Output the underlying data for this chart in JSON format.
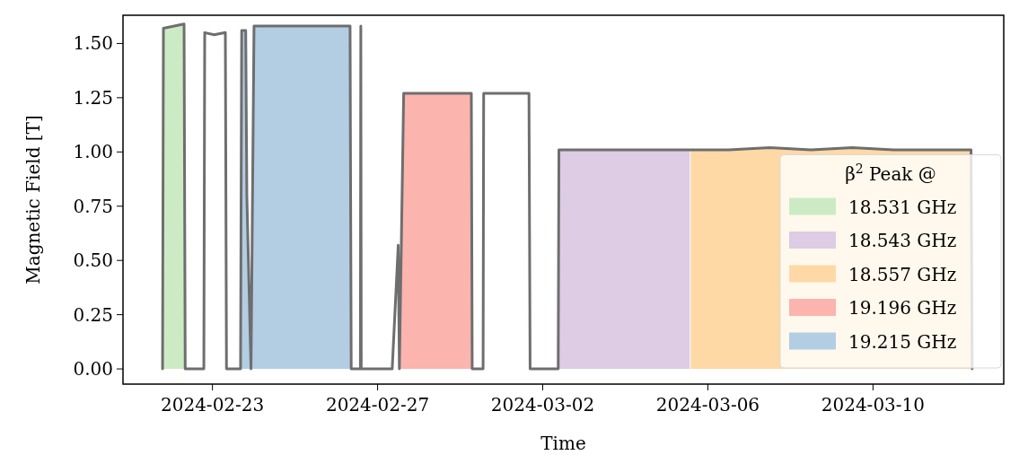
{
  "chart_data": {
    "type": "line",
    "xlabel": "Time",
    "ylabel": "Magnetic Field [T]",
    "legend_title": "β$^{2}$ Peak @",
    "legend": "bottom right",
    "grid": false,
    "xlim": [
      "2024-02-20T20:00",
      "2024-03-13T04:00"
    ],
    "xticks": [
      "2024-02-23",
      "2024-02-27",
      "2024-03-02",
      "2024-03-06",
      "2024-03-10"
    ],
    "ylim": [
      -0.07,
      1.63
    ],
    "yticks": [
      {
        "value": 0,
        "label": "0.00"
      },
      {
        "value": 0.25,
        "label": "0.25"
      },
      {
        "value": 0.5,
        "label": "0.50"
      },
      {
        "value": 0.75,
        "label": "0.75"
      },
      {
        "value": 1,
        "label": "1.00"
      },
      {
        "value": 1.25,
        "label": "1.25"
      },
      {
        "value": 1.5,
        "label": "1.50"
      }
    ],
    "series": [
      {
        "type": "area",
        "name": "18.531 GHz",
        "color": "#ccebc5",
        "x": [
          "2024-02-21T19:00",
          "2024-02-21T19:30",
          "2024-02-22T07:30",
          "2024-02-22T08:10"
        ],
        "values": [
          0,
          1.57,
          1.59,
          0
        ]
      },
      {
        "type": "area",
        "name": "18.543 GHz",
        "color": "#decbe4",
        "x": [
          "2024-03-02T09:00",
          "2024-03-02T09:25",
          "2024-03-05T13:30"
        ],
        "values": [
          0,
          1.01,
          1.01
        ]
      },
      {
        "type": "area",
        "name": "18.557 GHz",
        "color": "#fed9a6",
        "x": [
          "2024-03-05T14:00",
          "2024-03-06T12:00",
          "2024-03-07T12:00",
          "2024-03-08T12:00",
          "2024-03-09T12:00",
          "2024-03-10T12:00",
          "2024-03-11T12:00",
          "2024-03-12T09:00",
          "2024-03-12T09:40"
        ],
        "values": [
          1.01,
          1.01,
          1.02,
          1.01,
          1.02,
          1.01,
          1.01,
          1.01,
          0
        ]
      },
      {
        "type": "area",
        "name": "19.196 GHz",
        "color": "#fbb4ae",
        "x": [
          "2024-02-27T12:40",
          "2024-02-27T15:10",
          "2024-02-29T06:30",
          "2024-02-29T07:00"
        ],
        "values": [
          0,
          1.27,
          1.27,
          0
        ]
      },
      {
        "type": "area",
        "name": "19.215 GHz",
        "color": "#b3cde3",
        "x": [
          "2024-02-23T16:20",
          "2024-02-23T17:00",
          "2024-02-23T19:20",
          "2024-02-23T20:00",
          "2024-02-23T22:25",
          "2024-02-24T00:10",
          "2024-02-25T04:00",
          "2024-02-26T08:00",
          "2024-02-26T08:40"
        ],
        "values": [
          0,
          1.56,
          1.56,
          0.8,
          0,
          1.58,
          1.58,
          1.58,
          0
        ]
      },
      {
        "color": "#6e6e6e",
        "x": [
          "2024-02-21T19:00",
          "2024-02-21T19:30",
          "2024-02-22T07:30",
          "2024-02-22T08:10",
          "2024-02-22T19:00",
          "2024-02-22T19:30",
          "2024-02-23T01:00",
          "2024-02-23T07:30",
          "2024-02-23T08:10",
          "2024-02-23T16:20",
          "2024-02-23T17:00",
          "2024-02-23T19:20",
          "2024-02-23T20:00",
          "2024-02-23T22:25",
          "2024-02-24T00:10",
          "2024-02-25T04:00",
          "2024-02-26T08:00",
          "2024-02-26T08:40",
          "2024-02-26T14:00",
          "2024-02-26T14:15",
          "2024-02-26T14:30",
          "2024-02-27T08:30",
          "2024-02-27T12:00",
          "2024-02-27T12:40",
          "2024-02-27T15:10",
          "2024-02-29T06:30",
          "2024-02-29T07:00",
          "2024-02-29T13:20",
          "2024-02-29T13:40",
          "2024-03-01T16:00",
          "2024-03-01T16:40",
          "2024-03-02T09:00",
          "2024-03-02T09:25",
          "2024-03-05T13:30",
          "2024-03-06T12:00",
          "2024-03-07T12:00",
          "2024-03-08T12:00",
          "2024-03-09T12:00",
          "2024-03-10T12:00",
          "2024-03-11T12:00",
          "2024-03-12T09:00",
          "2024-03-12T09:40"
        ],
        "values": [
          0,
          1.57,
          1.59,
          0,
          0,
          1.55,
          1.54,
          1.55,
          0,
          0,
          1.56,
          1.56,
          0.8,
          0,
          1.58,
          1.58,
          1.58,
          0,
          0,
          1.58,
          0,
          0,
          0.57,
          0,
          1.27,
          1.27,
          0,
          0,
          1.27,
          1.27,
          0,
          0,
          1.01,
          1.01,
          1.01,
          1.02,
          1.01,
          1.02,
          1.01,
          1.01,
          1.01,
          0
        ]
      }
    ]
  }
}
